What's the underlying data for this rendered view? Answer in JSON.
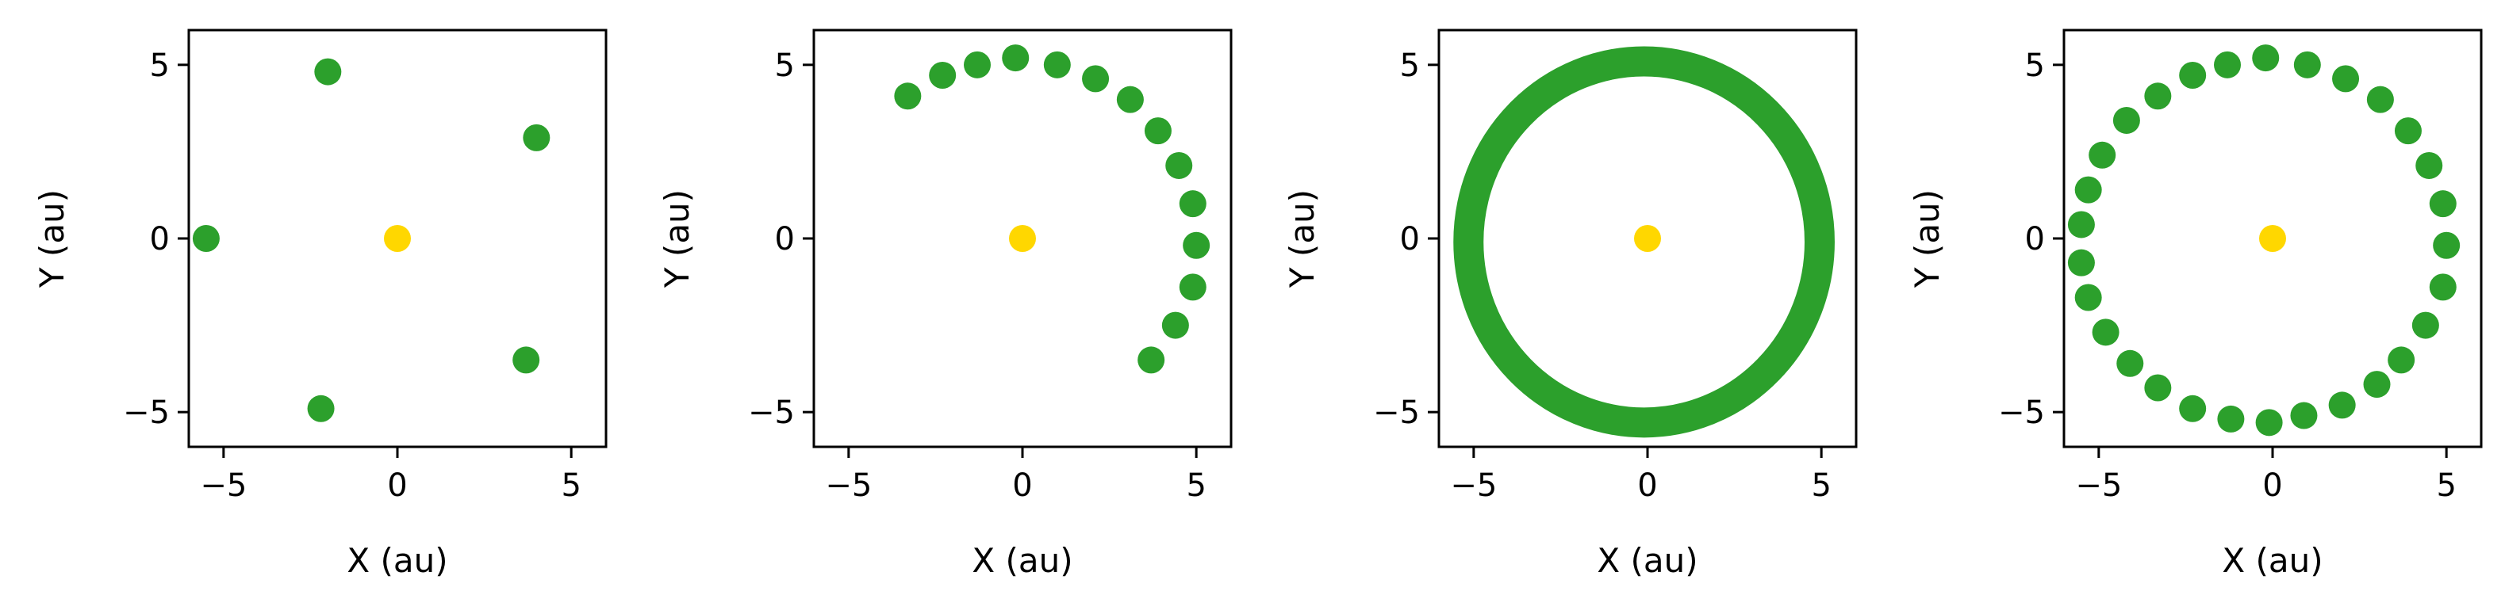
{
  "colors": {
    "planet": "#2ca02c",
    "star": "#ffd700",
    "axes": "#000000",
    "background": "#ffffff"
  },
  "chart_data": [
    {
      "type": "scatter",
      "title": "",
      "xlabel": "X (au)",
      "ylabel": "Y (au)",
      "xlim": [
        -6,
        6
      ],
      "ylim": [
        -6,
        6
      ],
      "xticks": [
        -5,
        0,
        5
      ],
      "yticks": [
        -5,
        0,
        5
      ],
      "xtick_labels": [
        "−5",
        "0",
        "5"
      ],
      "ytick_labels": [
        "−5",
        "0",
        "5"
      ],
      "grid": false,
      "series": [
        {
          "role": "planet",
          "x": [
            -5.5,
            -2.0,
            4.0,
            3.7,
            -2.2
          ],
          "y": [
            0.0,
            4.8,
            2.9,
            -3.5,
            -4.9
          ]
        },
        {
          "role": "star",
          "x": [
            0.0
          ],
          "y": [
            0.0
          ]
        }
      ]
    },
    {
      "type": "scatter",
      "title": "",
      "xlabel": "X (au)",
      "ylabel": "Y (au)",
      "xlim": [
        -6,
        6
      ],
      "ylim": [
        -6,
        6
      ],
      "xticks": [
        -5,
        0,
        5
      ],
      "yticks": [
        -5,
        0,
        5
      ],
      "xtick_labels": [
        "−5",
        "0",
        "5"
      ],
      "ytick_labels": [
        "−5",
        "0",
        "5"
      ],
      "grid": false,
      "series": [
        {
          "role": "planet",
          "x": [
            -3.3,
            -2.3,
            -1.3,
            -0.2,
            1.0,
            2.1,
            3.1,
            3.9,
            4.5,
            4.9,
            5.0,
            4.9,
            4.4,
            3.7
          ],
          "y": [
            4.1,
            4.7,
            5.0,
            5.2,
            5.0,
            4.6,
            4.0,
            3.1,
            2.1,
            1.0,
            -0.2,
            -1.4,
            -2.5,
            -3.5
          ]
        },
        {
          "role": "star",
          "x": [
            0.0
          ],
          "y": [
            0.0
          ]
        }
      ]
    },
    {
      "type": "scatter",
      "title": "",
      "xlabel": "X (au)",
      "ylabel": "Y (au)",
      "xlim": [
        -6,
        6
      ],
      "ylim": [
        -6,
        6
      ],
      "xticks": [
        -5,
        0,
        5
      ],
      "yticks": [
        -5,
        0,
        5
      ],
      "xtick_labels": [
        "−5",
        "0",
        "5"
      ],
      "ytick_labels": [
        "−5",
        "0",
        "5"
      ],
      "grid": false,
      "series": [
        {
          "role": "planet-orbit-ring",
          "center": [
            -0.1,
            -0.1
          ],
          "radius_x": 5.05,
          "radius_y": 5.2,
          "dense": true
        },
        {
          "role": "star",
          "x": [
            0.0
          ],
          "y": [
            0.0
          ]
        }
      ]
    },
    {
      "type": "scatter",
      "title": "",
      "xlabel": "X (au)",
      "ylabel": "Y (au)",
      "xlim": [
        -6,
        6
      ],
      "ylim": [
        -6,
        6
      ],
      "xticks": [
        -5,
        0,
        5
      ],
      "yticks": [
        -5,
        0,
        5
      ],
      "xtick_labels": [
        "−5",
        "0",
        "5"
      ],
      "ytick_labels": [
        "−5",
        "0",
        "5"
      ],
      "grid": false,
      "series": [
        {
          "role": "planet",
          "x": [
            -0.2,
            1.0,
            2.1,
            3.1,
            3.9,
            4.5,
            4.9,
            5.0,
            4.9,
            4.4,
            3.7,
            3.0,
            2.0,
            0.9,
            -0.1,
            -1.2,
            -2.3,
            -3.3,
            -4.1,
            -4.8,
            -5.3,
            -5.5,
            -5.5,
            -5.3,
            -4.9,
            -4.2,
            -3.3,
            -2.3,
            -1.3
          ],
          "y": [
            5.2,
            5.0,
            4.6,
            4.0,
            3.1,
            2.1,
            1.0,
            -0.2,
            -1.4,
            -2.5,
            -3.5,
            -4.2,
            -4.8,
            -5.1,
            -5.3,
            -5.2,
            -4.9,
            -4.3,
            -3.6,
            -2.7,
            -1.7,
            -0.7,
            0.4,
            1.4,
            2.4,
            3.4,
            4.1,
            4.7,
            5.0
          ]
        },
        {
          "role": "star",
          "x": [
            0.0
          ],
          "y": [
            0.0
          ]
        }
      ]
    }
  ]
}
